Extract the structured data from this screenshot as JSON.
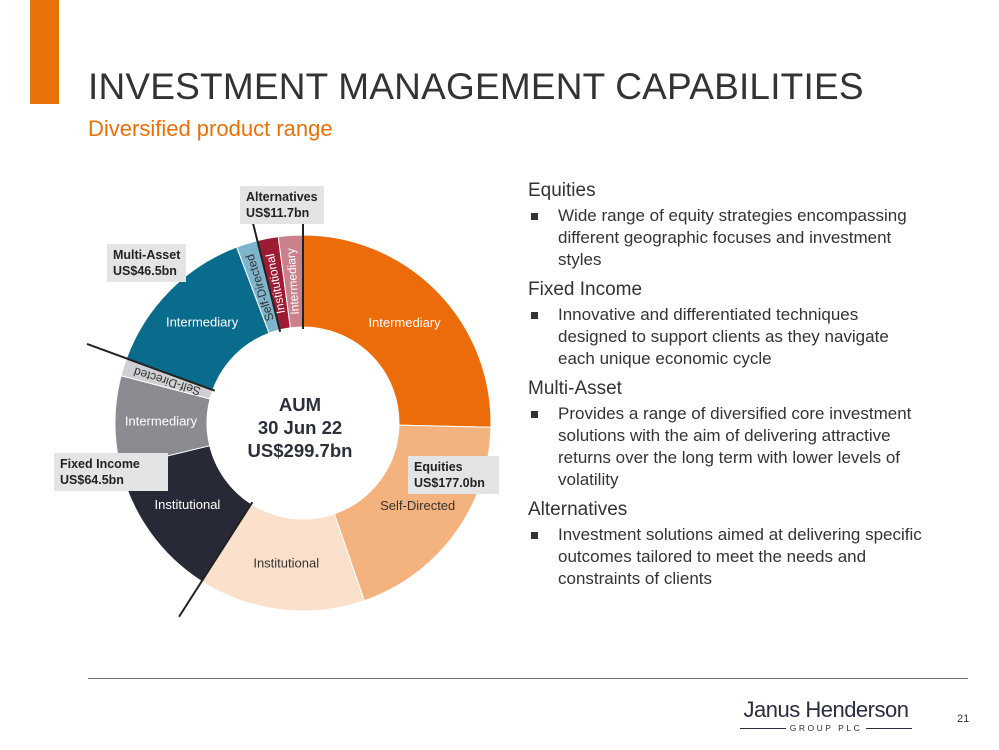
{
  "header": {
    "title": "INVESTMENT MANAGEMENT CAPABILITIES",
    "subtitle": "Diversified product range",
    "accent_color": "#e8710a"
  },
  "chart_data": {
    "type": "pie",
    "center_label": [
      "AUM",
      "30 Jun 22",
      "US$299.7bn"
    ],
    "slices": [
      {
        "label": "Intermediary",
        "group": "Equities",
        "value": 76.0,
        "color": "#ec6c0a"
      },
      {
        "label": "Self-Directed",
        "group": "Equities",
        "value": 58.0,
        "color": "#f4b27f"
      },
      {
        "label": "Institutional",
        "group": "Equities",
        "value": 43.0,
        "color": "#fbe1cb"
      },
      {
        "label": "Institutional",
        "group": "Fixed Income",
        "value": 36.4,
        "color": "#272a36"
      },
      {
        "label": "Intermediary",
        "group": "Fixed Income",
        "value": 23.5,
        "color": "#8b8c91"
      },
      {
        "label": "Self-Directed",
        "group": "Fixed Income",
        "value": 4.6,
        "color": "#cfd0d3"
      },
      {
        "label": "Intermediary",
        "group": "Multi-Asset",
        "value": 41.0,
        "color": "#0a6c8c"
      },
      {
        "label": "Self-Directed",
        "group": "Multi-Asset",
        "value": 5.5,
        "color": "#7fb5cc"
      },
      {
        "label": "Institutional",
        "group": "Alternatives",
        "value": 5.4,
        "color": "#9e1c33"
      },
      {
        "label": "Intermediary",
        "group": "Alternatives",
        "value": 6.3,
        "color": "#c9828b"
      }
    ],
    "groups": [
      {
        "name": "Equities",
        "value_label": "US$177.0bn"
      },
      {
        "name": "Fixed Income",
        "value_label": "US$64.5bn"
      },
      {
        "name": "Multi-Asset",
        "value_label": "US$46.5bn"
      },
      {
        "name": "Alternatives",
        "value_label": "US$11.7bn"
      }
    ]
  },
  "callouts": {
    "alternatives": {
      "name": "Alternatives",
      "value": "US$11.7bn"
    },
    "multi_asset": {
      "name": "Multi-Asset",
      "value": "US$46.5bn"
    },
    "fixed_income": {
      "name": "Fixed Income",
      "value": "US$64.5bn"
    },
    "equities": {
      "name": "Equities",
      "value": "US$177.0bn"
    }
  },
  "sections": [
    {
      "title": "Equities",
      "text": "Wide range of equity strategies encompassing different geographic focuses and investment styles"
    },
    {
      "title": "Fixed Income",
      "text": "Innovative and differentiated techniques designed to support clients as they navigate each unique economic cycle"
    },
    {
      "title": "Multi-Asset",
      "text": "Provides a range of diversified core investment solutions with the aim of delivering attractive returns over the long term with lower levels of volatility"
    },
    {
      "title": "Alternatives",
      "text": "Investment solutions aimed at delivering specific outcomes tailored to meet the needs and constraints of clients"
    }
  ],
  "footer": {
    "logo_main": "Janus Henderson",
    "logo_sub": "GROUP PLC",
    "page_number": "21"
  }
}
